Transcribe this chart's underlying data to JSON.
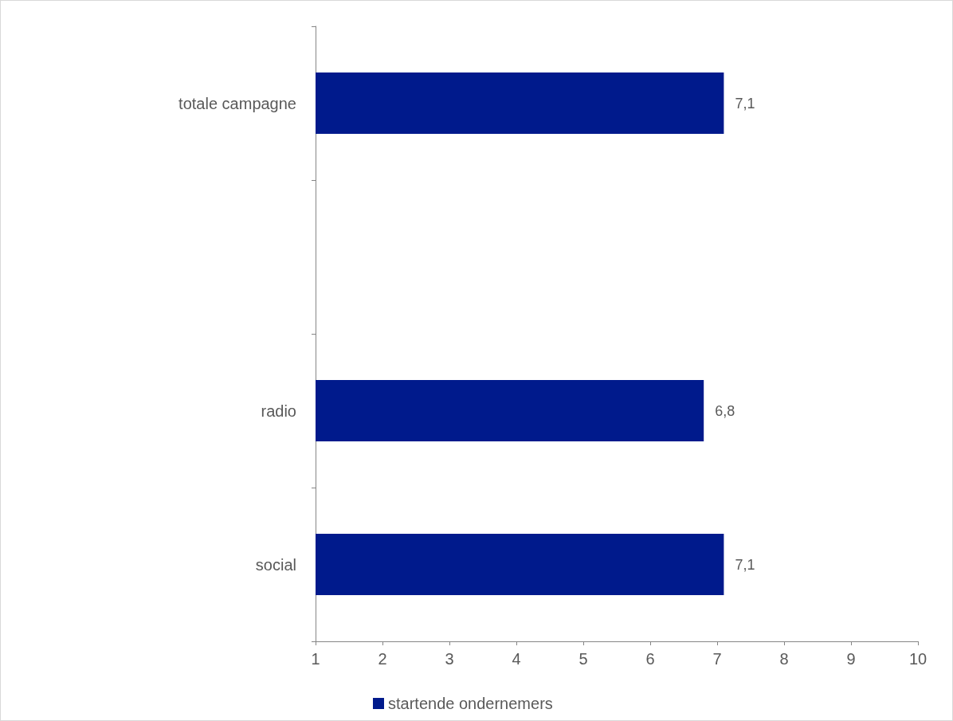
{
  "chart_data": {
    "type": "bar",
    "orientation": "horizontal",
    "categories": [
      "totale campagne",
      null,
      "radio",
      "social"
    ],
    "series": [
      {
        "name": "startende ondernemers",
        "color": "#001a8c",
        "values": [
          7.1,
          null,
          6.8,
          7.1
        ],
        "value_labels": [
          "7,1",
          null,
          "6,8",
          "7,1"
        ]
      }
    ],
    "xlim": [
      1,
      10
    ],
    "xticks": [
      1,
      2,
      3,
      4,
      5,
      6,
      7,
      8,
      9,
      10
    ],
    "grid": false,
    "legend": "bottom"
  }
}
